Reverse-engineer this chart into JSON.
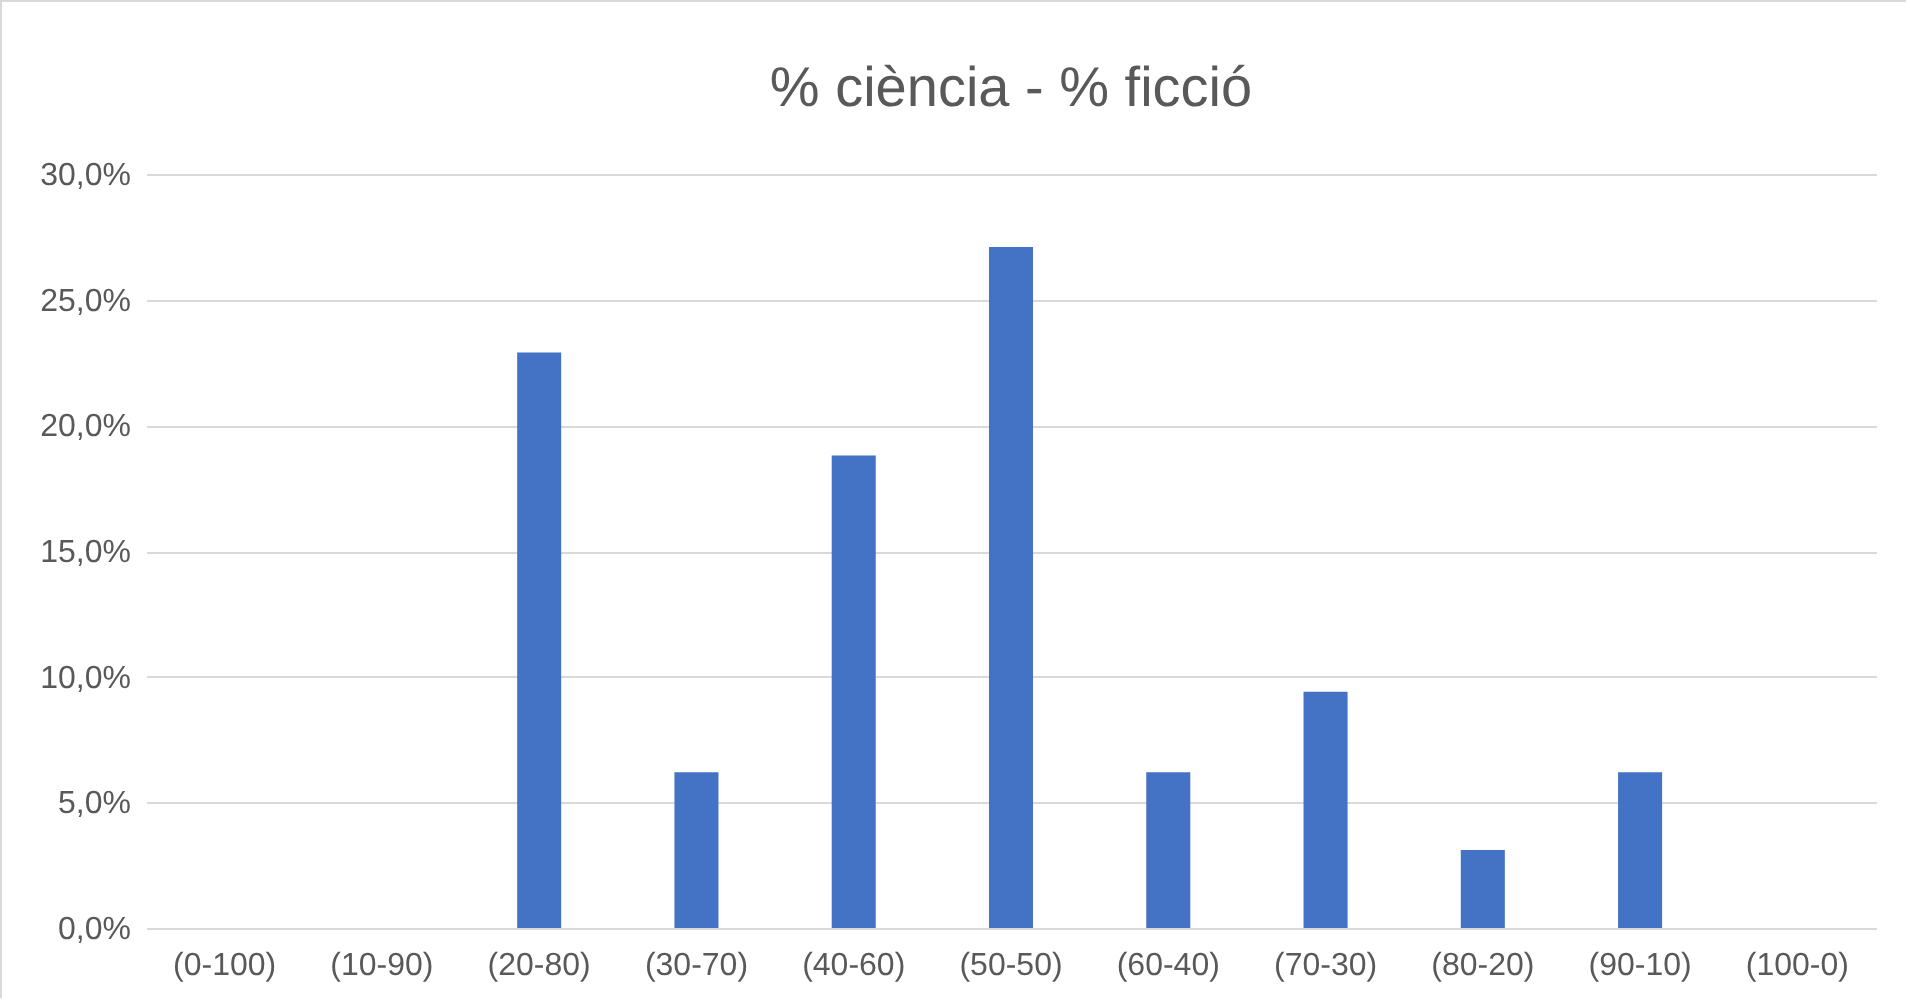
{
  "chart_data": {
    "type": "bar",
    "title": "% ciència - % ficció",
    "categories": [
      "(0-100)",
      "(10-90)",
      "(20-80)",
      "(30-70)",
      "(40-60)",
      "(50-50)",
      "(60-40)",
      "(70-30)",
      "(80-20)",
      "(90-10)",
      "(100-0)"
    ],
    "values": [
      0,
      0,
      22.9,
      6.2,
      18.8,
      27.1,
      6.2,
      9.4,
      3.1,
      6.2,
      0
    ],
    "color": "#4472c4",
    "ylim": [
      0,
      30
    ],
    "yticks": [
      {
        "value": 0,
        "label": "0,0%"
      },
      {
        "value": 5,
        "label": "5,0%"
      },
      {
        "value": 10,
        "label": "10,0%"
      },
      {
        "value": 15,
        "label": "15,0%"
      },
      {
        "value": 20,
        "label": "20,0%"
      },
      {
        "value": 25,
        "label": "25,0%"
      },
      {
        "value": 30,
        "label": "30,0%"
      }
    ],
    "grid": "y"
  }
}
